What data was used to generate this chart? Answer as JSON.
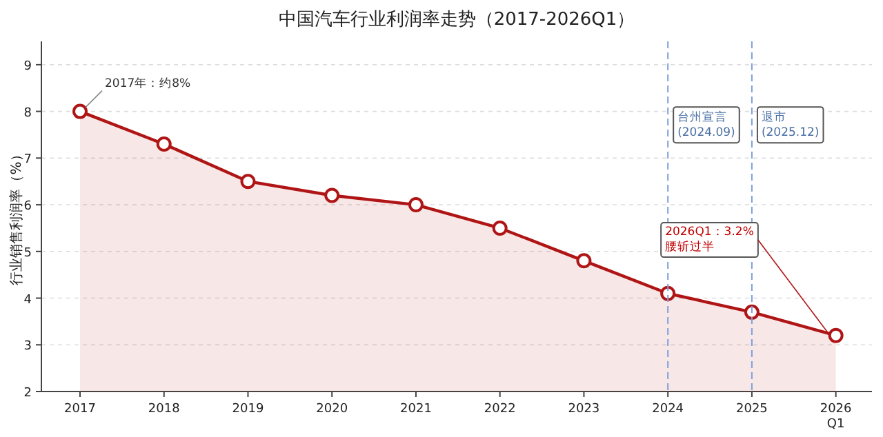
{
  "chart_data": {
    "type": "area",
    "title": "中国汽车行业利润率走势（2017-2026Q1）",
    "ylabel": "行业销售利润率（%）",
    "categories": [
      "2017",
      "2018",
      "2019",
      "2020",
      "2021",
      "2022",
      "2023",
      "2024",
      "2025",
      "2026 Q1"
    ],
    "series": [
      {
        "color": "#b01515",
        "values": [
          8,
          7.3,
          6.5,
          6.2,
          6.0,
          5.5,
          4.8,
          4.1,
          3.7,
          3.2
        ]
      }
    ],
    "ylim": [
      2,
      9.5
    ],
    "yticks": [
      2,
      3,
      4,
      5,
      6,
      7,
      8,
      9
    ],
    "grid": "y",
    "marker": "circle",
    "ref_lines": [
      {
        "axis": "x",
        "value": "2024",
        "label": "台州宣言 (2024.09)",
        "color": "#7f9fdc",
        "line_style": "dashed"
      },
      {
        "axis": "x",
        "value": "2025",
        "label": "退市 (2025.12)",
        "color": "#7f9fdc",
        "line_style": "dashed"
      }
    ],
    "annotations": [
      {
        "text": "2017年：约8%",
        "x": "2017",
        "y": 8
      },
      {
        "text": "2026Q1：3.2% 腰斩过半",
        "x": "2026 Q1",
        "y": 3.2
      }
    ]
  }
}
